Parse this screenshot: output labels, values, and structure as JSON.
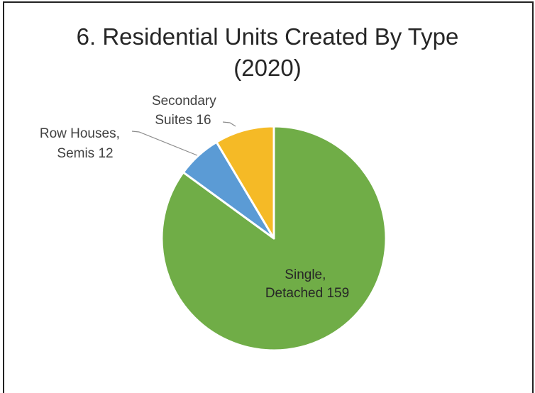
{
  "chart_data": {
    "type": "pie",
    "title": "6. Residential Units Created By Type (2020)",
    "title_lines": [
      "6. Residential Units Created By Type",
      "(2020)"
    ],
    "slices": [
      {
        "label_lines": [
          "Single,",
          "Detached 159"
        ],
        "value": 159,
        "color": "#70AD47"
      },
      {
        "label_lines": [
          "Row Houses,",
          "Semis 12"
        ],
        "value": 12,
        "color": "#5B9BD5"
      },
      {
        "label_lines": [
          "Secondary",
          "Suites  16"
        ],
        "value": 16,
        "color": "#F5BA26"
      }
    ],
    "legend": "none"
  }
}
